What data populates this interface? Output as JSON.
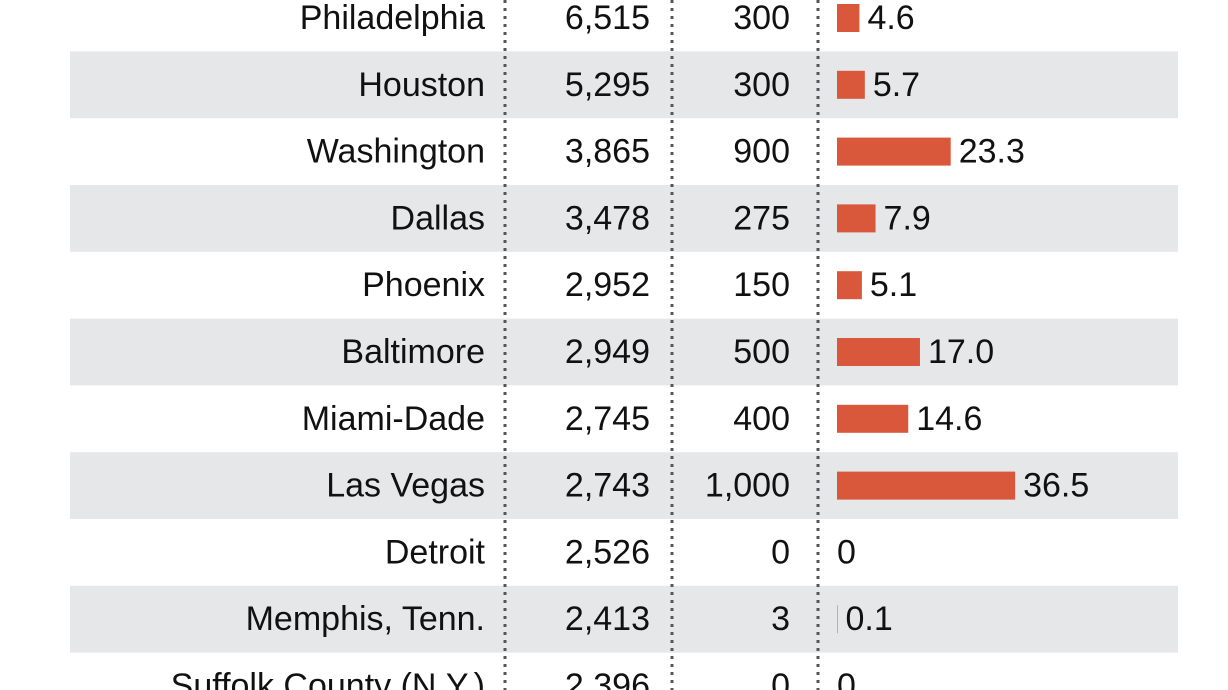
{
  "table": {
    "rows": [
      {
        "city": "Philadelphia",
        "col1": "6,515",
        "col2": "300",
        "share": 4.6,
        "share_label": "4.6"
      },
      {
        "city": "Houston",
        "col1": "5,295",
        "col2": "300",
        "share": 5.7,
        "share_label": "5.7"
      },
      {
        "city": "Washington",
        "col1": "3,865",
        "col2": "900",
        "share": 23.3,
        "share_label": "23.3"
      },
      {
        "city": "Dallas",
        "col1": "3,478",
        "col2": "275",
        "share": 7.9,
        "share_label": "7.9"
      },
      {
        "city": "Phoenix",
        "col1": "2,952",
        "col2": "150",
        "share": 5.1,
        "share_label": "5.1"
      },
      {
        "city": "Baltimore",
        "col1": "2,949",
        "col2": "500",
        "share": 17.0,
        "share_label": "17.0"
      },
      {
        "city": "Miami-Dade",
        "col1": "2,745",
        "col2": "400",
        "share": 14.6,
        "share_label": "14.6"
      },
      {
        "city": "Las Vegas",
        "col1": "2,743",
        "col2": "1,000",
        "share": 36.5,
        "share_label": "36.5"
      },
      {
        "city": "Detroit",
        "col1": "2,526",
        "col2": "0",
        "share": 0,
        "share_label": "0"
      },
      {
        "city": "Memphis, Tenn.",
        "col1": "2,413",
        "col2": "3",
        "share": 0.1,
        "share_label": "0.1"
      },
      {
        "city": "Suffolk County (N.Y.)",
        "col1": "2,396",
        "col2": "0",
        "share": 0,
        "share_label": "0"
      }
    ]
  }
}
